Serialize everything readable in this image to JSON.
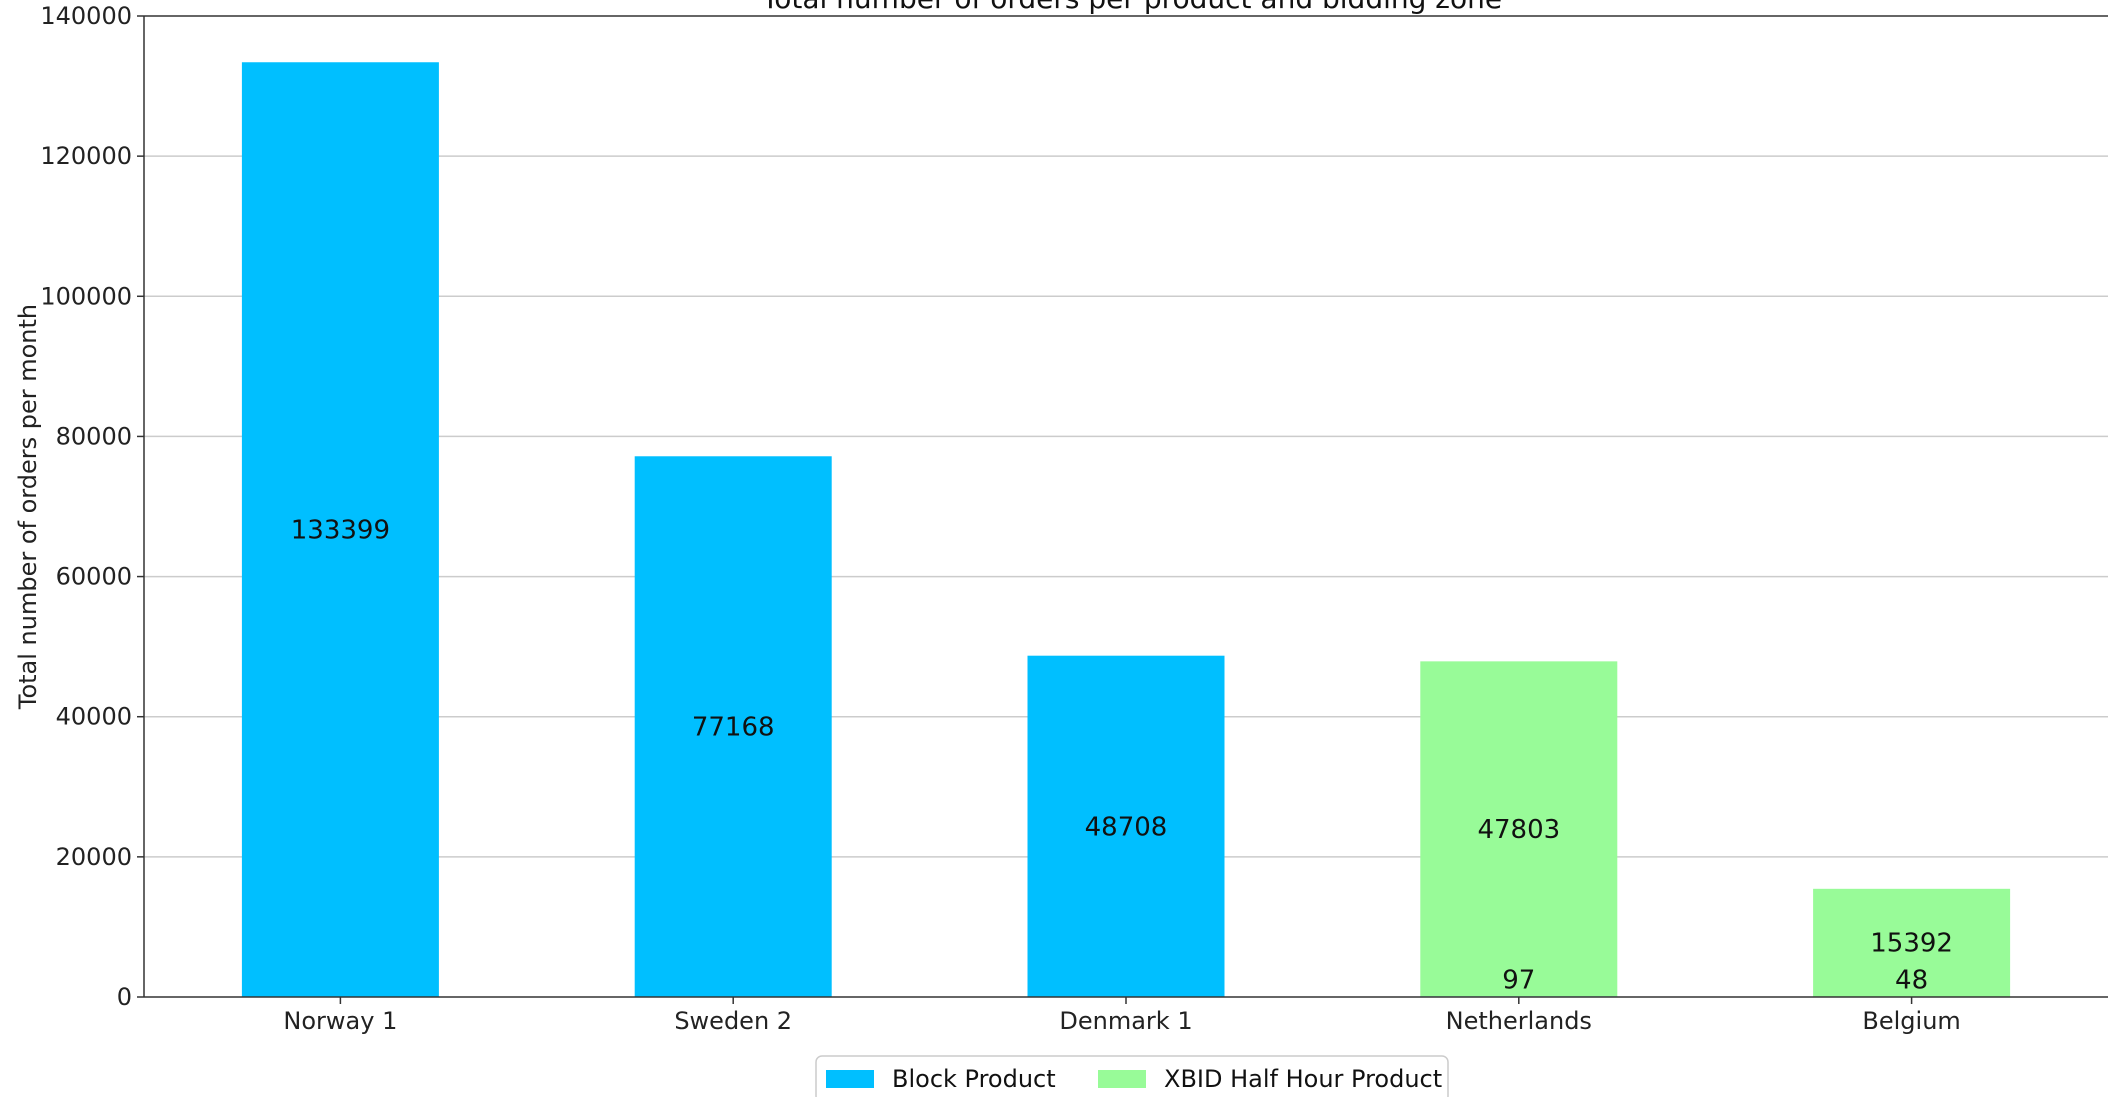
{
  "chart_data": {
    "type": "bar",
    "title": "Total number of orders per product and bidding zone",
    "xlabel": "",
    "ylabel": "Total number of orders per month",
    "categories": [
      "Norway 1",
      "Sweden 2",
      "Denmark 1",
      "Netherlands",
      "Belgium"
    ],
    "stacked": true,
    "series": [
      {
        "name": "Block Product",
        "color": "#00bfff",
        "values": [
          133399,
          77168,
          48708,
          97,
          48
        ]
      },
      {
        "name": "XBID Half Hour Product",
        "color": "#98fb98",
        "values": [
          0,
          0,
          0,
          47803,
          15392
        ]
      }
    ],
    "data_labels": [
      {
        "category": "Norway 1",
        "series": "Block Product",
        "text": "133399"
      },
      {
        "category": "Sweden 2",
        "series": "Block Product",
        "text": "77168"
      },
      {
        "category": "Denmark 1",
        "series": "Block Product",
        "text": "48708"
      },
      {
        "category": "Netherlands",
        "series": "XBID Half Hour Product",
        "text": "47803"
      },
      {
        "category": "Netherlands",
        "series": "Block Product",
        "text": "97"
      },
      {
        "category": "Belgium",
        "series": "XBID Half Hour Product",
        "text": "15392"
      },
      {
        "category": "Belgium",
        "series": "Block Product",
        "text": "48"
      }
    ],
    "yticks": [
      0,
      20000,
      40000,
      60000,
      80000,
      100000,
      120000,
      140000
    ],
    "ylim": [
      0,
      140000
    ],
    "grid": "y",
    "legend_position": "bottom-center"
  }
}
